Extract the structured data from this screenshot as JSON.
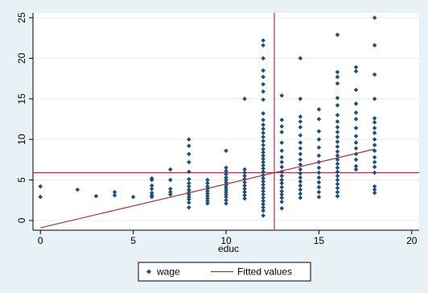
{
  "chart_data": {
    "type": "scatter",
    "title": "",
    "xlabel": "educ",
    "ylabel": "",
    "xlim": [
      -0.4,
      20.4
    ],
    "ylim": [
      -1.2,
      25.6
    ],
    "xticks": [
      0,
      5,
      10,
      15,
      20
    ],
    "yticks": [
      0,
      5,
      10,
      15,
      20,
      25
    ],
    "x_tick_labels": [
      "0",
      "5",
      "10",
      "15",
      "20"
    ],
    "y_tick_labels": [
      "0",
      "5",
      "10",
      "15",
      "20",
      "25"
    ],
    "grid": "horizontal",
    "legend_position": "bottom",
    "reference_lines": {
      "vertical_x": 12.6,
      "horizontal_y": 5.9
    },
    "series": [
      {
        "name": "wage",
        "marker": "diamond",
        "color": "#1f4e79",
        "points": [
          [
            0,
            4.2
          ],
          [
            0,
            2.9
          ],
          [
            2,
            3.8
          ],
          [
            3,
            3.0
          ],
          [
            4,
            3.5
          ],
          [
            4,
            3.1
          ],
          [
            5,
            2.9
          ],
          [
            6,
            5.2
          ],
          [
            6,
            5.0
          ],
          [
            6,
            4.3
          ],
          [
            6,
            3.9
          ],
          [
            6,
            3.4
          ],
          [
            6,
            3.1
          ],
          [
            6,
            2.9
          ],
          [
            7,
            6.3
          ],
          [
            7,
            5.0
          ],
          [
            7,
            3.9
          ],
          [
            7,
            3.5
          ],
          [
            7,
            3.2
          ],
          [
            8,
            10.0
          ],
          [
            8,
            9.2
          ],
          [
            8,
            8.2
          ],
          [
            8,
            7.2
          ],
          [
            8,
            6.0
          ],
          [
            8,
            5.1
          ],
          [
            8,
            4.6
          ],
          [
            8,
            4.2
          ],
          [
            8,
            3.8
          ],
          [
            8,
            3.5
          ],
          [
            8,
            3.2
          ],
          [
            8,
            2.9
          ],
          [
            8,
            2.6
          ],
          [
            8,
            2.2
          ],
          [
            8,
            1.6
          ],
          [
            9,
            5.0
          ],
          [
            9,
            4.6
          ],
          [
            9,
            4.2
          ],
          [
            9,
            3.9
          ],
          [
            9,
            3.6
          ],
          [
            9,
            3.3
          ],
          [
            9,
            3.0
          ],
          [
            9,
            2.7
          ],
          [
            9,
            2.4
          ],
          [
            9,
            2.1
          ],
          [
            10,
            8.6
          ],
          [
            10,
            6.5
          ],
          [
            10,
            6.1
          ],
          [
            10,
            5.7
          ],
          [
            10,
            5.3
          ],
          [
            10,
            5.0
          ],
          [
            10,
            4.7
          ],
          [
            10,
            4.4
          ],
          [
            10,
            4.1
          ],
          [
            10,
            3.8
          ],
          [
            10,
            3.5
          ],
          [
            10,
            3.2
          ],
          [
            10,
            2.9
          ],
          [
            10,
            2.5
          ],
          [
            10,
            2.1
          ],
          [
            11,
            15.0
          ],
          [
            11,
            6.3
          ],
          [
            11,
            5.9
          ],
          [
            11,
            5.5
          ],
          [
            11,
            5.1
          ],
          [
            11,
            4.7
          ],
          [
            11,
            4.3
          ],
          [
            11,
            3.9
          ],
          [
            11,
            3.5
          ],
          [
            11,
            3.1
          ],
          [
            11,
            2.7
          ],
          [
            12,
            22.2
          ],
          [
            12,
            21.6
          ],
          [
            12,
            20.0
          ],
          [
            12,
            18.5
          ],
          [
            12,
            17.7
          ],
          [
            12,
            16.8
          ],
          [
            12,
            15.9
          ],
          [
            12,
            14.9
          ],
          [
            12,
            13.2
          ],
          [
            12,
            12.4
          ],
          [
            12,
            11.8
          ],
          [
            12,
            11.3
          ],
          [
            12,
            10.8
          ],
          [
            12,
            10.3
          ],
          [
            12,
            9.8
          ],
          [
            12,
            9.3
          ],
          [
            12,
            8.8
          ],
          [
            12,
            8.4
          ],
          [
            12,
            8.0
          ],
          [
            12,
            7.6
          ],
          [
            12,
            7.2
          ],
          [
            12,
            6.8
          ],
          [
            12,
            6.4
          ],
          [
            12,
            6.0
          ],
          [
            12,
            5.6
          ],
          [
            12,
            5.2
          ],
          [
            12,
            4.8
          ],
          [
            12,
            4.4
          ],
          [
            12,
            4.0
          ],
          [
            12,
            3.6
          ],
          [
            12,
            3.2
          ],
          [
            12,
            2.8
          ],
          [
            12,
            2.4
          ],
          [
            12,
            2.0
          ],
          [
            12,
            1.6
          ],
          [
            12,
            1.2
          ],
          [
            12,
            0.6
          ],
          [
            13,
            15.4
          ],
          [
            13,
            12.4
          ],
          [
            13,
            11.6
          ],
          [
            13,
            10.9
          ],
          [
            13,
            9.6
          ],
          [
            13,
            8.6
          ],
          [
            13,
            7.8
          ],
          [
            13,
            7.2
          ],
          [
            13,
            6.6
          ],
          [
            13,
            6.0
          ],
          [
            13,
            5.5
          ],
          [
            13,
            5.0
          ],
          [
            13,
            4.6
          ],
          [
            13,
            4.1
          ],
          [
            13,
            3.6
          ],
          [
            13,
            3.2
          ],
          [
            13,
            2.8
          ],
          [
            13,
            2.3
          ],
          [
            13,
            1.5
          ],
          [
            14,
            20.0
          ],
          [
            14,
            15.0
          ],
          [
            14,
            12.8
          ],
          [
            14,
            12.2
          ],
          [
            14,
            11.5
          ],
          [
            14,
            10.5
          ],
          [
            14,
            9.6
          ],
          [
            14,
            8.9
          ],
          [
            14,
            8.2
          ],
          [
            14,
            7.5
          ],
          [
            14,
            6.9
          ],
          [
            14,
            6.3
          ],
          [
            14,
            5.8
          ],
          [
            14,
            5.3
          ],
          [
            14,
            4.8
          ],
          [
            14,
            4.3
          ],
          [
            14,
            3.8
          ],
          [
            14,
            3.3
          ],
          [
            14,
            2.8
          ],
          [
            15,
            13.7
          ],
          [
            15,
            12.5
          ],
          [
            15,
            11.0
          ],
          [
            15,
            10.0
          ],
          [
            15,
            9.0
          ],
          [
            15,
            8.0
          ],
          [
            15,
            7.2
          ],
          [
            15,
            6.5
          ],
          [
            15,
            5.9
          ],
          [
            15,
            5.3
          ],
          [
            15,
            4.7
          ],
          [
            15,
            4.1
          ],
          [
            15,
            3.5
          ],
          [
            15,
            2.9
          ],
          [
            16,
            22.9
          ],
          [
            16,
            18.3
          ],
          [
            16,
            17.7
          ],
          [
            16,
            16.9
          ],
          [
            16,
            15.1
          ],
          [
            16,
            14.2
          ],
          [
            16,
            13.0
          ],
          [
            16,
            12.2
          ],
          [
            16,
            11.5
          ],
          [
            16,
            10.9
          ],
          [
            16,
            10.3
          ],
          [
            16,
            9.7
          ],
          [
            16,
            9.1
          ],
          [
            16,
            8.5
          ],
          [
            16,
            8.0
          ],
          [
            16,
            7.5
          ],
          [
            16,
            7.0
          ],
          [
            16,
            6.5
          ],
          [
            16,
            6.0
          ],
          [
            16,
            5.5
          ],
          [
            16,
            5.0
          ],
          [
            16,
            4.5
          ],
          [
            16,
            4.0
          ],
          [
            16,
            3.5
          ],
          [
            16,
            3.0
          ],
          [
            17,
            18.9
          ],
          [
            17,
            18.4
          ],
          [
            17,
            16.1
          ],
          [
            17,
            14.4
          ],
          [
            17,
            13.3
          ],
          [
            17,
            12.5
          ],
          [
            17,
            11.4
          ],
          [
            17,
            10.4
          ],
          [
            17,
            9.6
          ],
          [
            17,
            8.9
          ],
          [
            17,
            8.2
          ],
          [
            17,
            7.5
          ],
          [
            17,
            6.7
          ],
          [
            17,
            6.3
          ],
          [
            18,
            25.0
          ],
          [
            18,
            21.6
          ],
          [
            18,
            18.0
          ],
          [
            18,
            15.0
          ],
          [
            18,
            12.6
          ],
          [
            18,
            12.1
          ],
          [
            18,
            11.4
          ],
          [
            18,
            10.8
          ],
          [
            18,
            10.0
          ],
          [
            18,
            9.3
          ],
          [
            18,
            8.6
          ],
          [
            18,
            7.8
          ],
          [
            18,
            7.2
          ],
          [
            18,
            6.6
          ],
          [
            18,
            5.9
          ],
          [
            18,
            4.2
          ],
          [
            18,
            3.8
          ],
          [
            18,
            3.4
          ]
        ]
      },
      {
        "name": "Fitted values",
        "line": true,
        "color": "#a8323a",
        "x": [
          0,
          18
        ],
        "y": [
          -0.9,
          8.8
        ]
      }
    ]
  },
  "colors": {
    "outer_background": "#e8f1f6",
    "plot_background": "#ffffff",
    "grid": "#e6eef3",
    "marker": "#1f4e79",
    "fit_line": "#a8323a",
    "ref_lines": "#b03048",
    "axis": "#000000"
  }
}
